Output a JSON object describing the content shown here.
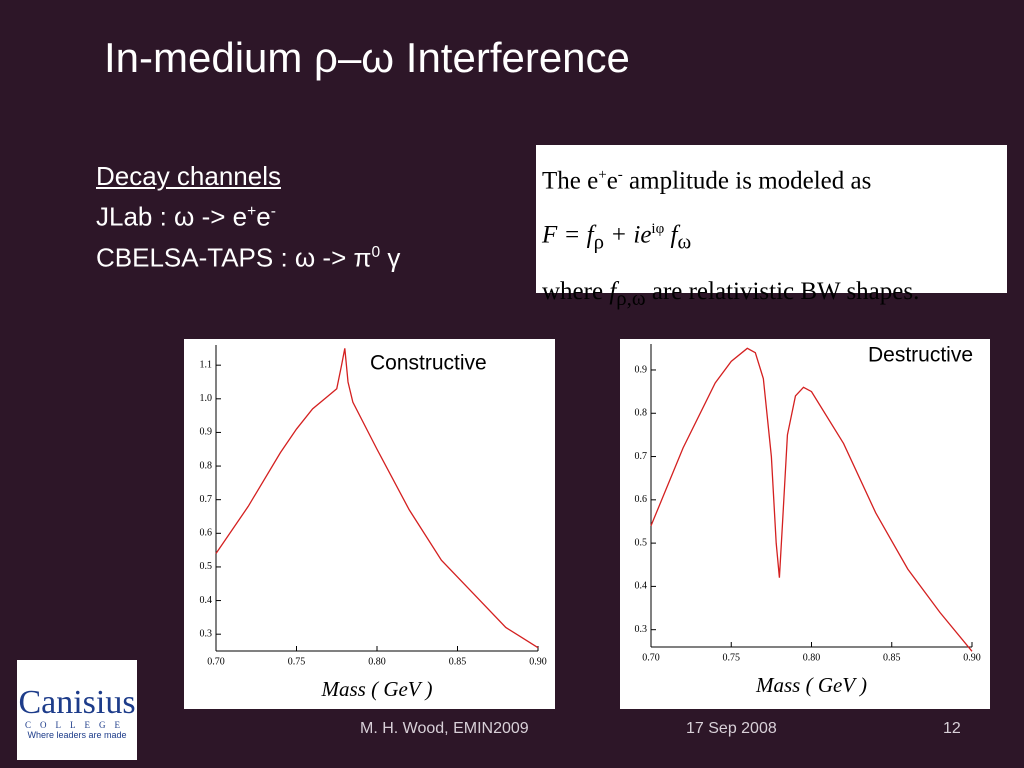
{
  "title": "In-medium ρ–ω Interference",
  "channels": {
    "heading": "Decay channels",
    "jlab": [
      "JLab : ω -> e",
      "+",
      "e",
      "-"
    ],
    "cbelsa": [
      "CBELSA-TAPS : ω -> π",
      "0",
      " γ"
    ]
  },
  "model": {
    "line1": [
      "The e",
      "+",
      "e",
      "-",
      " amplitude is modeled as"
    ],
    "formula": [
      "F = f",
      "ρ",
      " + ie",
      "iφ",
      " f",
      "ω"
    ],
    "line3": [
      "where ",
      "f",
      "ρ,ω",
      " are relativistic BW shapes."
    ]
  },
  "logo": {
    "name": "Canisius",
    "sub": "COLLEGE",
    "motto": "Where leaders are made"
  },
  "footer": {
    "author": "M. H. Wood, EMIN2009",
    "date": "17 Sep 2008",
    "page": "12"
  },
  "chart_data": [
    {
      "type": "line",
      "annotation": "Constructive",
      "x_label": "Mass ( GeV )",
      "color": "#d42020",
      "x": [
        0.7,
        0.72,
        0.74,
        0.75,
        0.76,
        0.77,
        0.775,
        0.778,
        0.78,
        0.782,
        0.785,
        0.8,
        0.82,
        0.84,
        0.86,
        0.88,
        0.9
      ],
      "values": [
        0.54,
        0.68,
        0.84,
        0.91,
        0.97,
        1.01,
        1.03,
        1.1,
        1.15,
        1.05,
        0.99,
        0.85,
        0.67,
        0.52,
        0.42,
        0.32,
        0.26
      ],
      "xlim": [
        0.7,
        0.9
      ],
      "ylim": [
        0.25,
        1.16
      ],
      "xticks": [
        {
          "value": 0.7,
          "label": "0.70"
        },
        {
          "value": 0.75,
          "label": "0.75"
        },
        {
          "value": 0.8,
          "label": "0.80"
        },
        {
          "value": 0.85,
          "label": "0.85"
        },
        {
          "value": 0.9,
          "label": "0.90"
        }
      ],
      "yticks": [
        0.3,
        0.4,
        0.5,
        0.6,
        0.7,
        0.8,
        0.9,
        {
          "value": 1.0,
          "label": "1.0"
        },
        1.1
      ]
    },
    {
      "type": "line",
      "annotation": "Destructive",
      "x_label": "Mass ( GeV )",
      "color": "#d42020",
      "x": [
        0.7,
        0.72,
        0.74,
        0.75,
        0.76,
        0.765,
        0.77,
        0.775,
        0.778,
        0.78,
        0.782,
        0.785,
        0.79,
        0.795,
        0.8,
        0.82,
        0.84,
        0.86,
        0.88,
        0.9
      ],
      "values": [
        0.54,
        0.72,
        0.87,
        0.92,
        0.95,
        0.94,
        0.88,
        0.7,
        0.5,
        0.42,
        0.55,
        0.75,
        0.84,
        0.86,
        0.85,
        0.73,
        0.57,
        0.44,
        0.34,
        0.25
      ],
      "xlim": [
        0.7,
        0.9
      ],
      "ylim": [
        0.26,
        0.96
      ],
      "xticks": [
        {
          "value": 0.7,
          "label": "0.70"
        },
        {
          "value": 0.75,
          "label": "0.75"
        },
        {
          "value": 0.8,
          "label": "0.80"
        },
        {
          "value": 0.85,
          "label": "0.85"
        },
        {
          "value": 0.9,
          "label": "0.90"
        }
      ],
      "yticks": [
        0.3,
        0.4,
        0.5,
        0.6,
        0.7,
        0.8,
        0.9
      ]
    }
  ]
}
